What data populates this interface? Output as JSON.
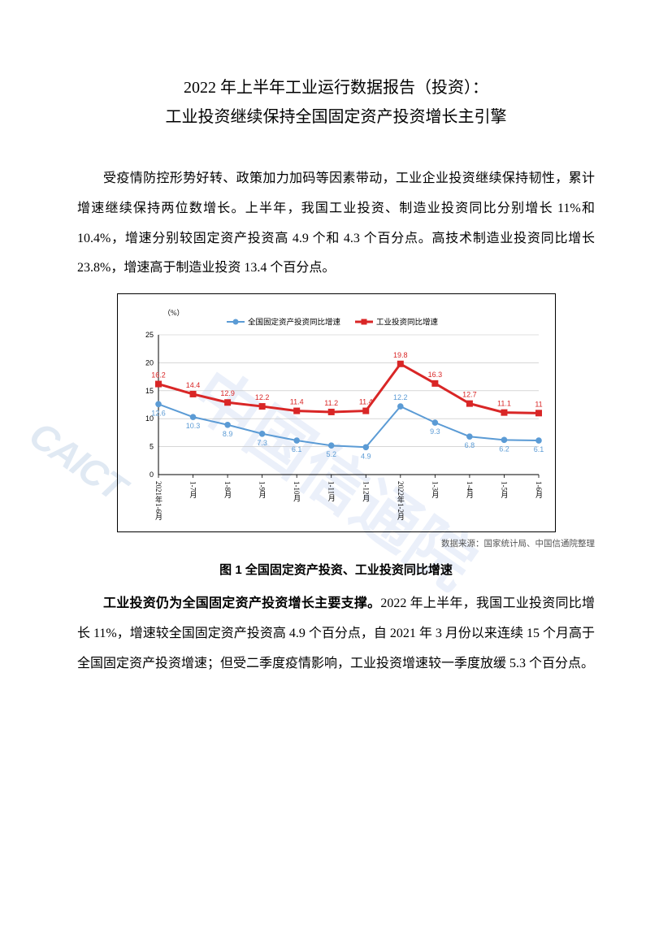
{
  "title": {
    "line1": "2022 年上半年工业运行数据报告（投资）：",
    "line2": "工业投资继续保持全国固定资产投资增长主引擎"
  },
  "paragraph1": "受疫情防控形势好转、政策加力加码等因素带动，工业企业投资继续保持韧性，累计增速继续保持两位数增长。上半年，我国工业投资、制造业投资同比分别增长 11%和 10.4%，增速分别较固定资产投资高 4.9 个和 4.3 个百分点。高技术制造业投资同比增长 23.8%，增速高于制造业投资 13.4 个百分点。",
  "chart": {
    "type": "line",
    "y_unit_label": "（%）",
    "ylim": [
      0,
      25
    ],
    "ytick_step": 5,
    "yticks": [
      0,
      5,
      10,
      15,
      20,
      25
    ],
    "categories": [
      "2021年1-6月",
      "1-7月",
      "1-8月",
      "1-9月",
      "1-10月",
      "1-11月",
      "1-12月",
      "2022年1-2月",
      "1-3月",
      "1-4月",
      "1-5月",
      "1-6月"
    ],
    "series": [
      {
        "name": "全国固定资产投资同比增速",
        "values": [
          12.6,
          10.3,
          8.9,
          7.3,
          6.1,
          5.2,
          4.9,
          12.2,
          9.3,
          6.8,
          6.2,
          6.1
        ],
        "color": "#5b9bd5",
        "marker": "circle",
        "line_width": 2,
        "label_color": "#5b9bd5",
        "label_positions": [
          "below",
          "below",
          "below",
          "below",
          "below",
          "below",
          "below",
          "above",
          "below",
          "below",
          "below",
          "below"
        ]
      },
      {
        "name": "工业投资同比增速",
        "values": [
          16.2,
          14.4,
          12.9,
          12.2,
          11.4,
          11.2,
          11.4,
          19.8,
          16.3,
          12.7,
          11.1,
          11
        ],
        "color": "#d92626",
        "marker": "square",
        "line_width": 3,
        "label_color": "#d92626",
        "label_positions": [
          "above",
          "above",
          "above",
          "above",
          "above",
          "above",
          "above",
          "above",
          "above",
          "above",
          "above",
          "above"
        ]
      }
    ],
    "background_color": "#ffffff",
    "grid_color": "#bfbfbf",
    "axis_color": "#000000",
    "tick_font_size": 9,
    "label_font_size": 9,
    "legend_font_size": 9.5
  },
  "chart_source": "数据来源：国家统计局、中国信通院整理",
  "fig_caption": "图 1 全国固定资产投资、工业投资同比增速",
  "paragraph2_bold": "工业投资仍为全国固定资产投资增长主要支撑。",
  "paragraph2_rest": "2022 年上半年，我国工业投资同比增长 11%，增速较全国固定资产投资高 4.9 个百分点，自 2021 年 3 月份以来连续 15 个月高于全国固定资产投资增速；但受二季度疫情影响，工业投资增速较一季度放缓 5.3 个百分点。",
  "watermark_text": "中国信通院",
  "watermark_logo": "CAICT"
}
